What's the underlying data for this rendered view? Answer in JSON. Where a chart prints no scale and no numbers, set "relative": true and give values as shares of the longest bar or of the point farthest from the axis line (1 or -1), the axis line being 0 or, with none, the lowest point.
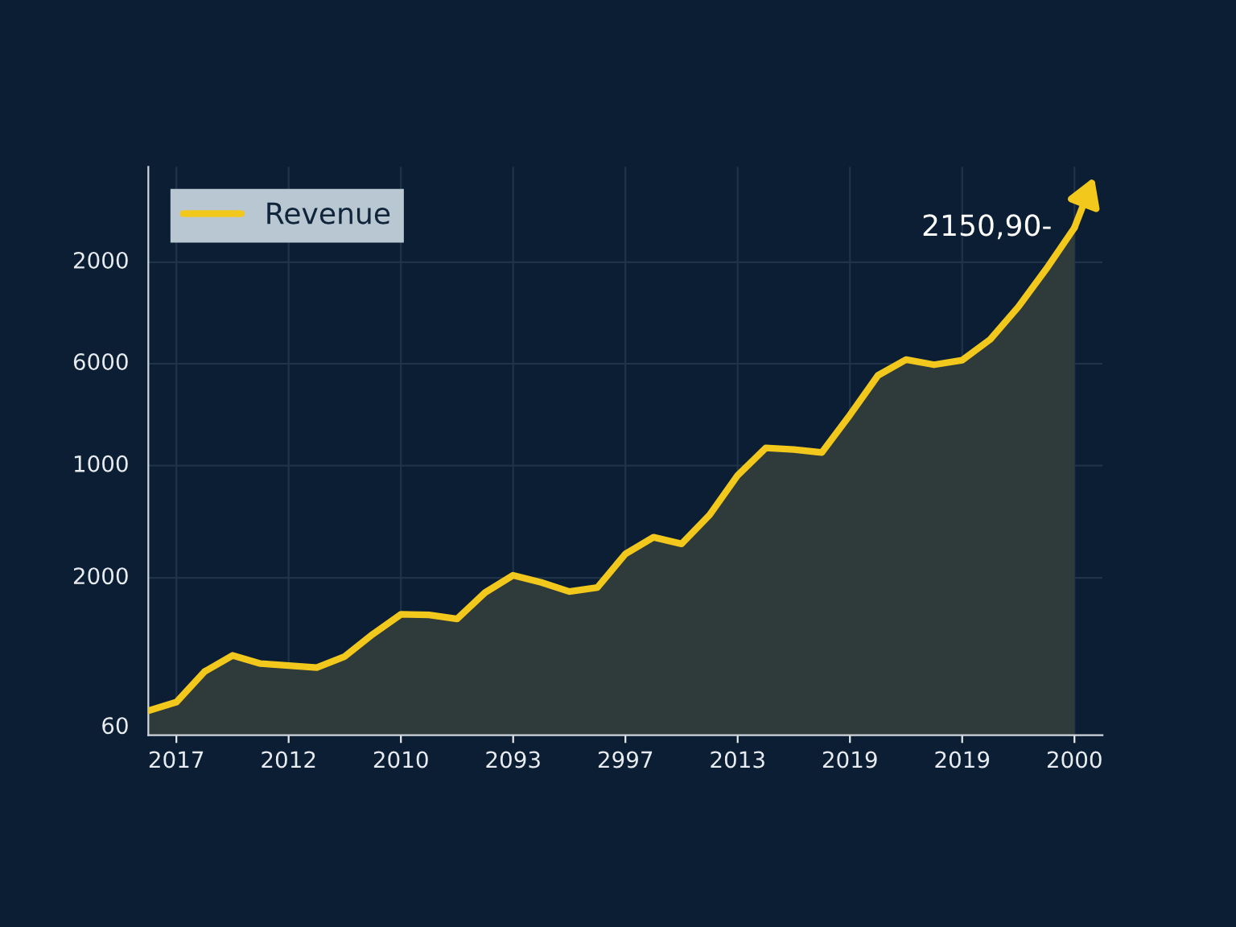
{
  "chart_data": {
    "type": "area",
    "relative": true,
    "categories": [
      null,
      "2017",
      null,
      null,
      null,
      "2012",
      null,
      null,
      null,
      "2010",
      null,
      null,
      null,
      "2093",
      null,
      null,
      null,
      "2997",
      null,
      null,
      null,
      "2013",
      null,
      null,
      null,
      "2019",
      null,
      null,
      null,
      "2019",
      null,
      null,
      null,
      "2000"
    ],
    "series": [
      {
        "name": "Revenue",
        "color": "#f2c81c",
        "values": [
          0.048,
          0.065,
          0.125,
          0.157,
          0.141,
          0.137,
          0.133,
          0.155,
          0.199,
          0.238,
          0.237,
          0.229,
          0.281,
          0.315,
          0.301,
          0.283,
          0.291,
          0.357,
          0.39,
          0.377,
          0.434,
          0.512,
          0.566,
          0.563,
          0.557,
          0.631,
          0.709,
          0.74,
          0.73,
          0.739,
          0.78,
          0.844,
          0.919,
          1.0
        ]
      }
    ],
    "annotations": [
      "2150,90-",
      "2000",
      "6000",
      "1000",
      "2000",
      "60"
    ],
    "grid": true,
    "legend": "top left",
    "marker": "none",
    "line_style": "solid"
  }
}
